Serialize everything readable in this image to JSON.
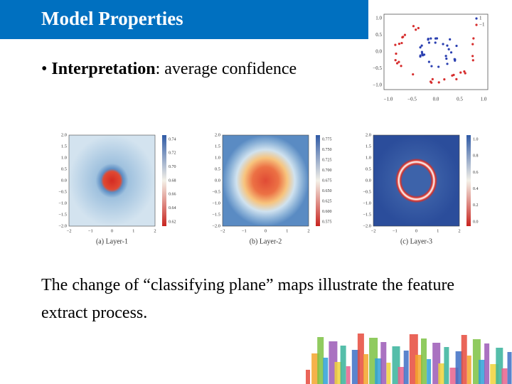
{
  "header": {
    "title": "Model Properties"
  },
  "bullet": {
    "term": "Interpretation",
    "text": ": average confidence"
  },
  "scatter": {
    "xticks": [
      "−1.0",
      "−0.5",
      "0.0",
      "0.5",
      "1.0"
    ],
    "yticks": [
      "1.0",
      "0.5",
      "0.0",
      "−0.5",
      "−1.0"
    ],
    "legend": [
      "1",
      "−1"
    ]
  },
  "panels": [
    {
      "caption": "(a) Layer-1",
      "xticks": [
        "−2",
        "−1",
        "0",
        "1",
        "2"
      ],
      "yticks": [
        "2.0",
        "1.5",
        "1.0",
        "0.5",
        "0.0",
        "−0.5",
        "−1.0",
        "−1.5",
        "−2.0"
      ],
      "colorbar_ticks": [
        "0.74",
        "0.72",
        "0.70",
        "0.68",
        "0.66",
        "0.64",
        "0.62"
      ]
    },
    {
      "caption": "(b) Layer-2",
      "xticks": [
        "−2",
        "−1",
        "0",
        "1",
        "2"
      ],
      "yticks": [
        "2.0",
        "1.5",
        "1.0",
        "0.5",
        "0.0",
        "−0.5",
        "−1.0",
        "−1.5",
        "−2.0"
      ],
      "colorbar_ticks": [
        "0.775",
        "0.750",
        "0.725",
        "0.700",
        "0.675",
        "0.650",
        "0.625",
        "0.600",
        "0.575"
      ]
    },
    {
      "caption": "(c) Layer-3",
      "xticks": [
        "−2",
        "−1",
        "0",
        "1",
        "2"
      ],
      "yticks": [
        "2.0",
        "1.5",
        "1.0",
        "0.5",
        "0.0",
        "−0.5",
        "−1.0",
        "−1.5",
        "−2.0"
      ],
      "colorbar_ticks": [
        "1.0",
        "0.8",
        "0.6",
        "0.4",
        "0.2",
        "0.0"
      ]
    }
  ],
  "body": "The change of “classifying plane” maps illustrate the feature extract process."
}
